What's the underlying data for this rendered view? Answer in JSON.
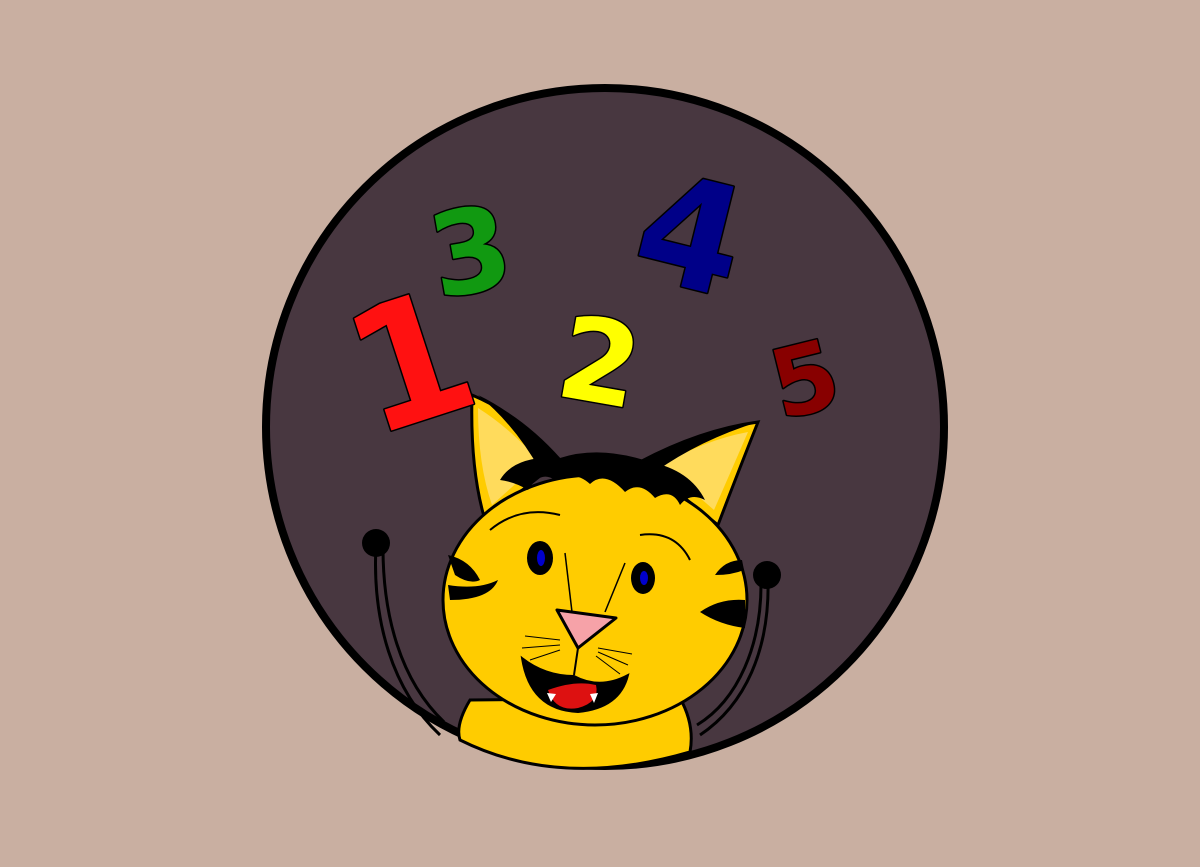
{
  "colors": {
    "background": "#C9AFA1",
    "disc": "#483740",
    "outline": "#000000",
    "cat_fur": "#FFCC00",
    "cat_ear_inner": "#FFDB5C",
    "cat_eye": "#0000CC",
    "cat_nose": "#F6A2A8",
    "cat_tongue": "#DD1111"
  },
  "numbers": [
    {
      "text": "1",
      "color": "#FF1111"
    },
    {
      "text": "3",
      "color": "#119911"
    },
    {
      "text": "4",
      "color": "#000088"
    },
    {
      "text": "2",
      "color": "#FFFF00"
    },
    {
      "text": "5",
      "color": "#880000"
    }
  ],
  "icons": {
    "cat": "cartoon-tabby-cat",
    "antenna": "ball-tipped-antenna"
  }
}
